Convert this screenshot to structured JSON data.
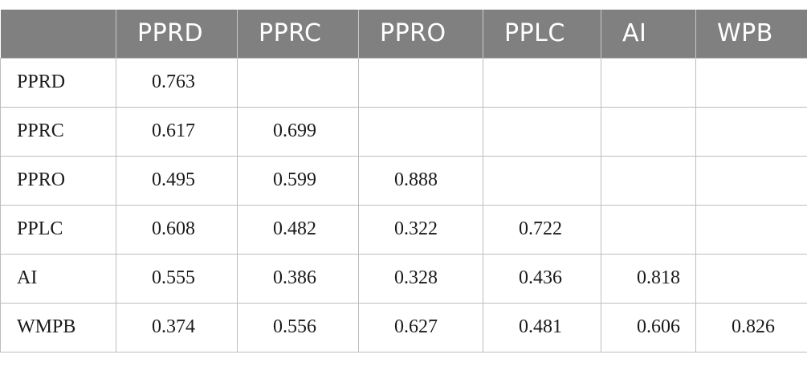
{
  "table": {
    "header": [
      "",
      "PPRD",
      "PPRC",
      "PPRO",
      "PPLC",
      "AI",
      "WPB"
    ],
    "rows": [
      {
        "label": "PPRD",
        "cells": [
          "0.763",
          "",
          "",
          "",
          "",
          ""
        ]
      },
      {
        "label": "PPRC",
        "cells": [
          "0.617",
          "0.699",
          "",
          "",
          "",
          ""
        ]
      },
      {
        "label": "PPRO",
        "cells": [
          "0.495",
          "0.599",
          "0.888",
          "",
          "",
          ""
        ]
      },
      {
        "label": "PPLC",
        "cells": [
          "0.608",
          "0.482",
          "0.322",
          "0.722",
          "",
          ""
        ]
      },
      {
        "label": "AI",
        "cells": [
          "0.555",
          "0.386",
          "0.328",
          "0.436",
          "0.818",
          ""
        ]
      },
      {
        "label": "WMPB",
        "cells": [
          "0.374",
          "0.556",
          "0.627",
          "0.481",
          "0.606",
          "0.826"
        ]
      }
    ]
  }
}
